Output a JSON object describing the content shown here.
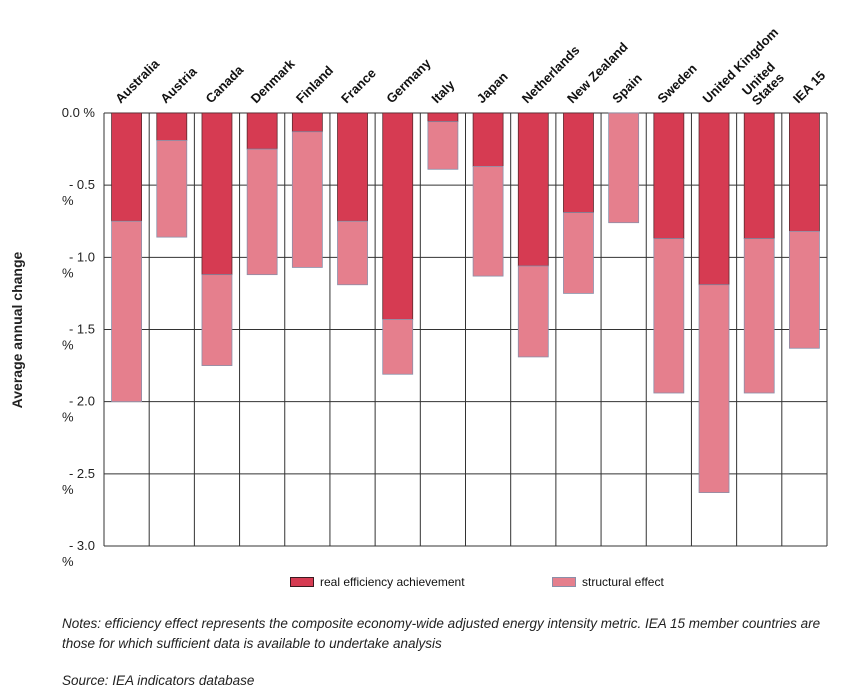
{
  "chart_data": {
    "type": "bar",
    "stacked": true,
    "title": "",
    "xlabel": "",
    "ylabel": "Average annual change",
    "ylim": [
      -3.0,
      0.0
    ],
    "yticks": [
      {
        "value": 0.0,
        "label": "0.0 %"
      },
      {
        "value": -0.5,
        "label": "- 0.5 %"
      },
      {
        "value": -1.0,
        "label": "- 1.0 %"
      },
      {
        "value": -1.5,
        "label": "- 1.5 %"
      },
      {
        "value": -2.0,
        "label": "- 2.0 %"
      },
      {
        "value": -2.5,
        "label": "- 2.5 %"
      },
      {
        "value": -3.0,
        "label": "- 3.0 %"
      }
    ],
    "categories": [
      "Australia",
      "Austria",
      "Canada",
      "Denmark",
      "Finland",
      "France",
      "Germany",
      "Italy",
      "Japan",
      "Netherlands",
      "New Zealand",
      "Spain",
      "Sweden",
      "United Kingdom",
      "United States",
      "IEA 15"
    ],
    "series": [
      {
        "name": "real efficiency achievement",
        "color": "#d63b52",
        "values": [
          -0.75,
          -0.19,
          -1.12,
          -0.25,
          -0.13,
          -0.75,
          -1.43,
          -0.06,
          -0.37,
          -1.06,
          -0.69,
          0.0,
          -0.87,
          -1.19,
          -0.87,
          -0.82
        ]
      },
      {
        "name": "structural effect",
        "color": "#e57f8d",
        "values": [
          -1.25,
          -0.67,
          -0.63,
          -0.87,
          -0.94,
          -0.44,
          -0.38,
          -0.33,
          -0.76,
          -0.63,
          -0.56,
          -0.76,
          -1.07,
          -1.44,
          -1.07,
          -0.81
        ]
      }
    ],
    "legend_position": "bottom",
    "grid": true
  },
  "notes": "Notes: efficiency effect represents the composite economy-wide adjusted energy intensity metric. IEA 15 member countries are those for which sufficient data is available to undertake analysis",
  "source": "Source: IEA indicators database"
}
